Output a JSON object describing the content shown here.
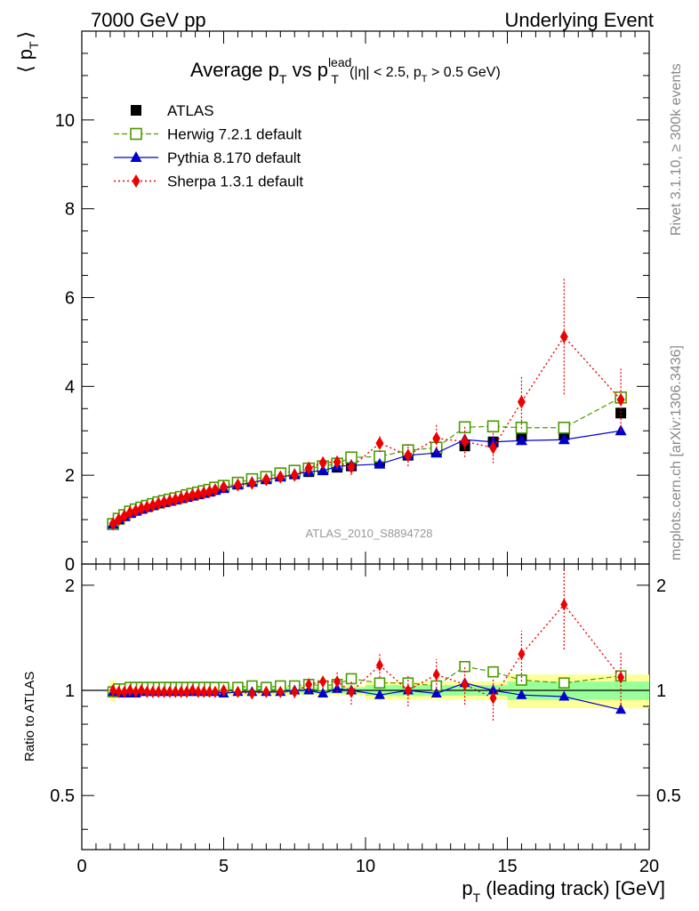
{
  "header": {
    "left": "7000 GeV pp",
    "right": "Underlying Event"
  },
  "side": {
    "rivet": "Rivet 3.1.10, ≥ 300k events",
    "mcplots": "mcplots.cern.ch [arXiv:1306.3436]"
  },
  "chart_data": [
    {
      "type": "scatter",
      "panel": "main",
      "title": "Average p_T vs p_T^lead (|η| < 2.5, p_T > 0.5 GeV)",
      "title_parts": {
        "main": "Average p",
        "sub1": "T",
        "vs": " vs p",
        "sup": "lead",
        "sub2": "T",
        "cond1": "(|η| < 2.5, p",
        "cond_sub": "T",
        "cond2": " > 0.5 GeV)"
      },
      "ylabel": "⟨ p_T ⟩",
      "ylabel_parts": {
        "left": "⟨ p",
        "sub": "T",
        "right": "⟩"
      },
      "xlabel": "p_T (leading track) [GeV]",
      "xlabel_parts": {
        "left": "p",
        "sub": "T",
        "right": " (leading track) [GeV]"
      },
      "watermark": "ATLAS_2010_S8894728",
      "xlim": [
        0,
        20
      ],
      "ylim": [
        0,
        12
      ],
      "xticks": [
        0,
        5,
        10,
        15,
        20
      ],
      "xtick_labels": [
        "0",
        "5",
        "10",
        "15",
        "20"
      ],
      "yticks": [
        0,
        2,
        4,
        6,
        8,
        10
      ],
      "ytick_labels": [
        "0",
        "2",
        "4",
        "6",
        "8",
        "10"
      ],
      "legend_position": "top-left",
      "x": [
        1.1,
        1.3,
        1.5,
        1.7,
        1.9,
        2.1,
        2.3,
        2.5,
        2.7,
        2.9,
        3.1,
        3.3,
        3.5,
        3.7,
        3.9,
        4.1,
        4.3,
        4.5,
        4.7,
        5.0,
        5.5,
        6.0,
        6.5,
        7.0,
        7.5,
        8.0,
        8.5,
        9.0,
        9.5,
        10.5,
        11.5,
        12.5,
        13.5,
        14.5,
        15.5,
        17.0,
        19.0
      ],
      "series": [
        {
          "name": "ATLAS",
          "color": "#000000",
          "marker": "square-filled",
          "values": [
            0.91,
            1.01,
            1.09,
            1.16,
            1.21,
            1.25,
            1.29,
            1.33,
            1.37,
            1.4,
            1.43,
            1.46,
            1.49,
            1.52,
            1.55,
            1.58,
            1.61,
            1.64,
            1.68,
            1.73,
            1.8,
            1.86,
            1.92,
            1.98,
            2.03,
            2.08,
            2.14,
            2.18,
            2.21,
            2.31,
            2.45,
            2.55,
            2.66,
            2.75,
            2.88,
            2.91,
            3.4
          ]
        },
        {
          "name": "Herwig 7.2.1 default",
          "color": "#4a9a00",
          "marker": "square-open",
          "values": [
            0.9,
            1.02,
            1.1,
            1.18,
            1.23,
            1.27,
            1.31,
            1.35,
            1.39,
            1.42,
            1.45,
            1.48,
            1.51,
            1.55,
            1.58,
            1.61,
            1.64,
            1.67,
            1.72,
            1.76,
            1.83,
            1.91,
            1.96,
            2.04,
            2.1,
            2.15,
            2.2,
            2.26,
            2.4,
            2.42,
            2.56,
            2.62,
            3.08,
            3.1,
            3.07,
            3.07,
            3.75
          ]
        },
        {
          "name": "Pythia 8.170 default",
          "color": "#0000cc",
          "marker": "triangle-filled",
          "values": [
            0.9,
            1.0,
            1.07,
            1.14,
            1.19,
            1.24,
            1.28,
            1.32,
            1.36,
            1.39,
            1.42,
            1.45,
            1.48,
            1.51,
            1.54,
            1.57,
            1.6,
            1.63,
            1.66,
            1.7,
            1.78,
            1.84,
            1.9,
            1.96,
            2.02,
            2.08,
            2.1,
            2.2,
            2.22,
            2.25,
            2.45,
            2.5,
            2.8,
            2.75,
            2.78,
            2.8,
            3.0
          ]
        },
        {
          "name": "Sherpa 1.3.1 default",
          "color": "#ee0000",
          "marker": "diamond-filled",
          "values": [
            0.91,
            1.0,
            1.08,
            1.16,
            1.2,
            1.25,
            1.28,
            1.32,
            1.36,
            1.39,
            1.42,
            1.45,
            1.48,
            1.51,
            1.55,
            1.57,
            1.6,
            1.63,
            1.67,
            1.73,
            1.78,
            1.82,
            1.9,
            1.96,
            2.0,
            2.16,
            2.28,
            2.3,
            2.18,
            2.72,
            2.45,
            2.83,
            2.76,
            2.62,
            3.65,
            5.12,
            3.7
          ],
          "errors": [
            0.02,
            0.02,
            0.02,
            0.02,
            0.02,
            0.02,
            0.02,
            0.02,
            0.02,
            0.02,
            0.02,
            0.02,
            0.02,
            0.02,
            0.02,
            0.02,
            0.02,
            0.02,
            0.03,
            0.03,
            0.04,
            0.05,
            0.06,
            0.07,
            0.08,
            0.1,
            0.12,
            0.15,
            0.18,
            0.2,
            0.25,
            0.3,
            0.35,
            0.35,
            0.6,
            1.3,
            0.7
          ]
        }
      ]
    },
    {
      "type": "scatter",
      "panel": "ratio",
      "ylabel": "Ratio to ATLAS",
      "xlim": [
        0,
        20
      ],
      "ylim": [
        0.35,
        2.3
      ],
      "log_y": true,
      "yticks": [
        0.5,
        1,
        2
      ],
      "ytick_labels": [
        "0.5",
        "1",
        "2"
      ],
      "x": [
        1.1,
        1.3,
        1.5,
        1.7,
        1.9,
        2.1,
        2.3,
        2.5,
        2.7,
        2.9,
        3.1,
        3.3,
        3.5,
        3.7,
        3.9,
        4.1,
        4.3,
        4.5,
        4.7,
        5.0,
        5.5,
        6.0,
        6.5,
        7.0,
        7.5,
        8.0,
        8.5,
        9.0,
        9.5,
        10.5,
        11.5,
        12.5,
        13.5,
        14.5,
        15.5,
        17.0,
        19.0
      ],
      "series": [
        {
          "name": "Herwig 7.2.1 default",
          "color": "#4a9a00",
          "values": [
            0.99,
            1.01,
            1.01,
            1.02,
            1.02,
            1.02,
            1.02,
            1.02,
            1.02,
            1.02,
            1.02,
            1.02,
            1.02,
            1.02,
            1.02,
            1.02,
            1.02,
            1.02,
            1.02,
            1.02,
            1.02,
            1.03,
            1.02,
            1.03,
            1.03,
            1.04,
            1.03,
            1.04,
            1.08,
            1.05,
            1.05,
            1.03,
            1.17,
            1.13,
            1.07,
            1.05,
            1.1
          ]
        },
        {
          "name": "Pythia 8.170 default",
          "color": "#0000cc",
          "values": [
            0.99,
            0.99,
            0.98,
            0.98,
            0.98,
            0.99,
            0.99,
            0.99,
            0.99,
            0.99,
            0.99,
            0.99,
            0.99,
            0.99,
            0.99,
            0.99,
            0.99,
            0.99,
            0.99,
            0.98,
            0.99,
            0.99,
            0.99,
            0.99,
            1.0,
            1.0,
            0.98,
            1.01,
            1.0,
            0.97,
            1.0,
            0.98,
            1.05,
            1.0,
            0.97,
            0.96,
            0.88
          ]
        },
        {
          "name": "Sherpa 1.3.1 default",
          "color": "#ee0000",
          "values": [
            1.0,
            0.99,
            0.99,
            1.0,
            0.99,
            1.0,
            0.99,
            0.99,
            0.99,
            0.99,
            0.99,
            0.99,
            0.99,
            0.99,
            1.0,
            0.99,
            0.99,
            0.99,
            0.99,
            1.0,
            0.99,
            0.98,
            0.99,
            0.99,
            0.99,
            1.04,
            1.06,
            1.06,
            0.99,
            1.18,
            1.0,
            1.11,
            1.04,
            0.95,
            1.27,
            1.76,
            1.09
          ],
          "errors": [
            0.01,
            0.01,
            0.01,
            0.01,
            0.01,
            0.01,
            0.01,
            0.01,
            0.01,
            0.01,
            0.01,
            0.01,
            0.01,
            0.01,
            0.01,
            0.01,
            0.01,
            0.01,
            0.01,
            0.01,
            0.02,
            0.02,
            0.03,
            0.03,
            0.04,
            0.05,
            0.05,
            0.07,
            0.08,
            0.09,
            0.1,
            0.12,
            0.13,
            0.13,
            0.21,
            0.45,
            0.2
          ]
        }
      ],
      "bands": [
        {
          "name": "ATLAS total uncertainty",
          "color": "#ffff99",
          "x_edges": [
            1.0,
            1.2,
            1.4,
            5.0,
            10.0,
            15.0,
            20.0
          ],
          "half_widths": [
            0.07,
            0.035,
            0.03,
            0.035,
            0.06,
            0.11
          ]
        },
        {
          "name": "ATLAS statistical uncertainty",
          "color": "#99ff99",
          "x_edges": [
            1.0,
            1.2,
            1.4,
            5.0,
            10.0,
            15.0,
            20.0
          ],
          "half_widths": [
            0.035,
            0.02,
            0.015,
            0.02,
            0.035,
            0.06
          ]
        }
      ]
    }
  ]
}
